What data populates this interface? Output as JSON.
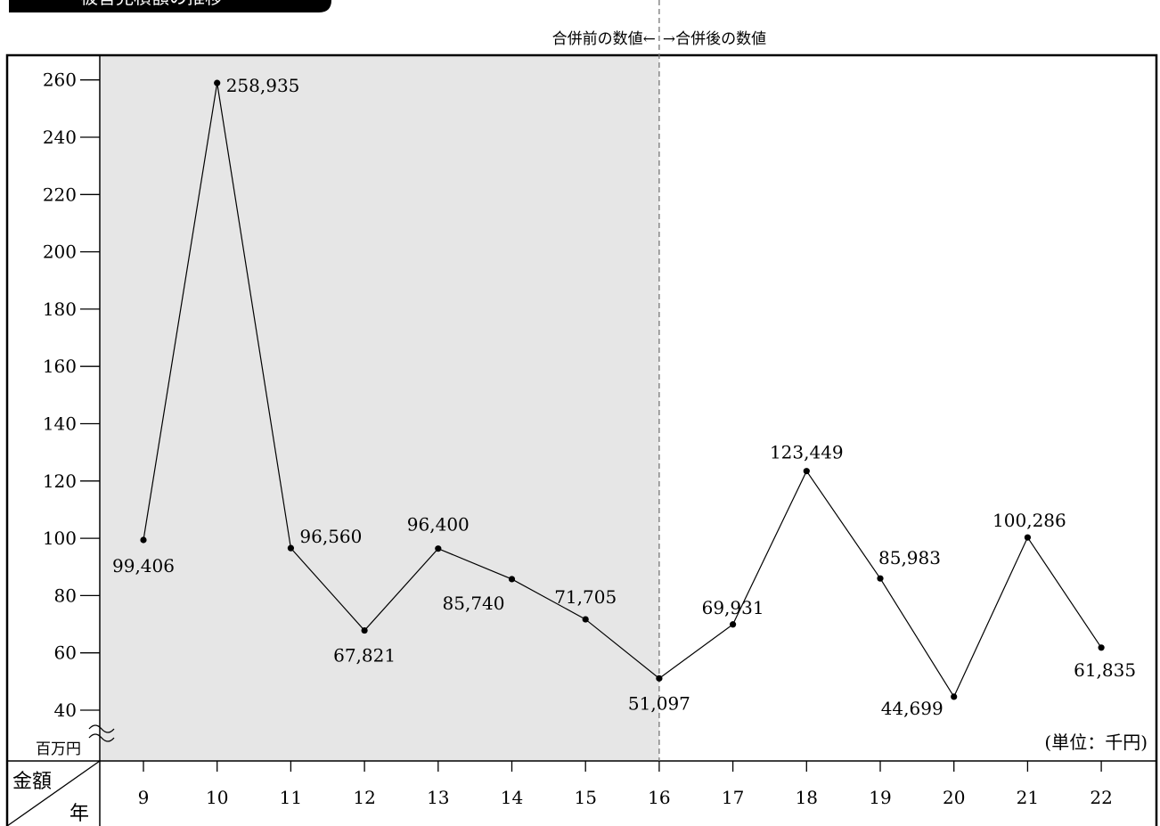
{
  "header": {
    "title_partial": "被害見積額の推移"
  },
  "divider": {
    "before_label": "合併前の数値←",
    "after_label": "→合併後の数値"
  },
  "unit_label": "(単位：千円)",
  "y_unit_label": "百万円",
  "corner": {
    "top": "金額",
    "bottom": "年"
  },
  "colors": {
    "shaded": "#e6e6e6",
    "line": "#000000"
  },
  "chart_data": {
    "type": "line",
    "x": [
      "9",
      "10",
      "11",
      "12",
      "13",
      "14",
      "15",
      "16",
      "17",
      "18",
      "19",
      "20",
      "21",
      "22"
    ],
    "values": [
      99406,
      258935,
      96560,
      67821,
      96400,
      85740,
      71705,
      51097,
      69931,
      123449,
      85983,
      44699,
      100286,
      61835
    ],
    "data_labels": [
      "99,406",
      "258,935",
      "96,560",
      "67,821",
      "96,400",
      "85,740",
      "71,705",
      "51,097",
      "69,931",
      "123,449",
      "85,983",
      "44,699",
      "100,286",
      "61,835"
    ],
    "yticks": [
      "40",
      "60",
      "80",
      "100",
      "120",
      "140",
      "160",
      "180",
      "200",
      "220",
      "240",
      "260"
    ],
    "ylim": [
      40,
      260
    ],
    "y_axis_break": true,
    "shaded_range": [
      "9",
      "16"
    ],
    "grid": false
  }
}
